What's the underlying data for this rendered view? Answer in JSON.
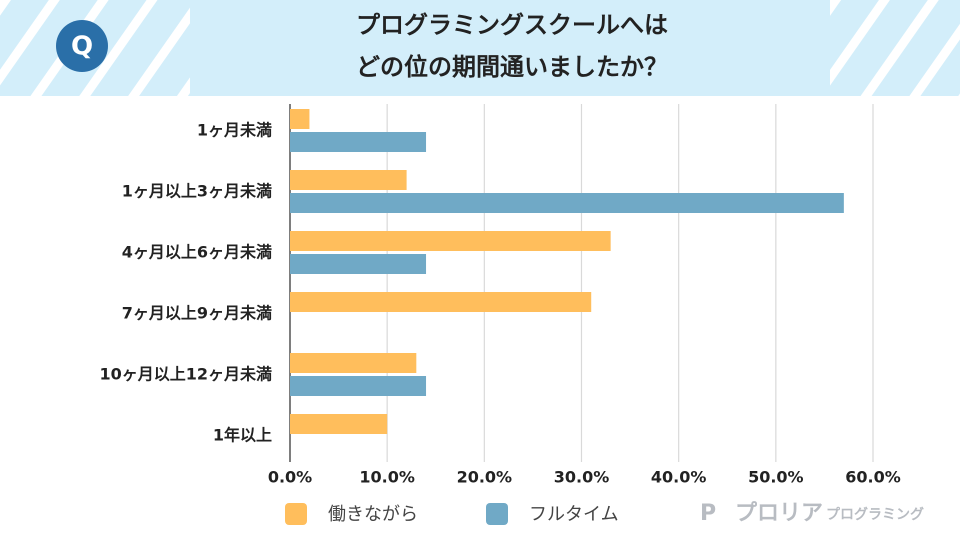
{
  "chart_data": {
    "type": "bar",
    "orientation": "horizontal",
    "badge": "Q",
    "title_lines": [
      "プログラミングスクールへは",
      "どの位の期間通いましたか？"
    ],
    "categories": [
      "1ヶ月未満",
      "1ヶ月以上3ヶ月未満",
      "4ヶ月以上6ヶ月未満",
      "7ヶ月以上9ヶ月未満",
      "10ヶ月以上12ヶ月未満",
      "1年以上"
    ],
    "series": [
      {
        "name": "働きながら",
        "color": "#ffbe5c",
        "values": [
          2,
          12,
          33,
          31,
          13,
          10
        ]
      },
      {
        "name": "フルタイム",
        "color": "#70a9c6",
        "values": [
          14,
          57,
          14,
          0,
          14,
          0
        ]
      }
    ],
    "xlim": [
      0,
      60
    ],
    "xticks": [
      {
        "value": 0,
        "label": "0.0%"
      },
      {
        "value": 10,
        "label": "10.0%"
      },
      {
        "value": 20,
        "label": "20.0%"
      },
      {
        "value": 30,
        "label": "30.0%"
      },
      {
        "value": 40,
        "label": "40.0%"
      },
      {
        "value": 50,
        "label": "50.0%"
      },
      {
        "value": 60,
        "label": "60.0%"
      }
    ],
    "grid": true,
    "legend": "bottom",
    "brand": {
      "name": "プロリア",
      "sub": "プログラミング"
    }
  }
}
